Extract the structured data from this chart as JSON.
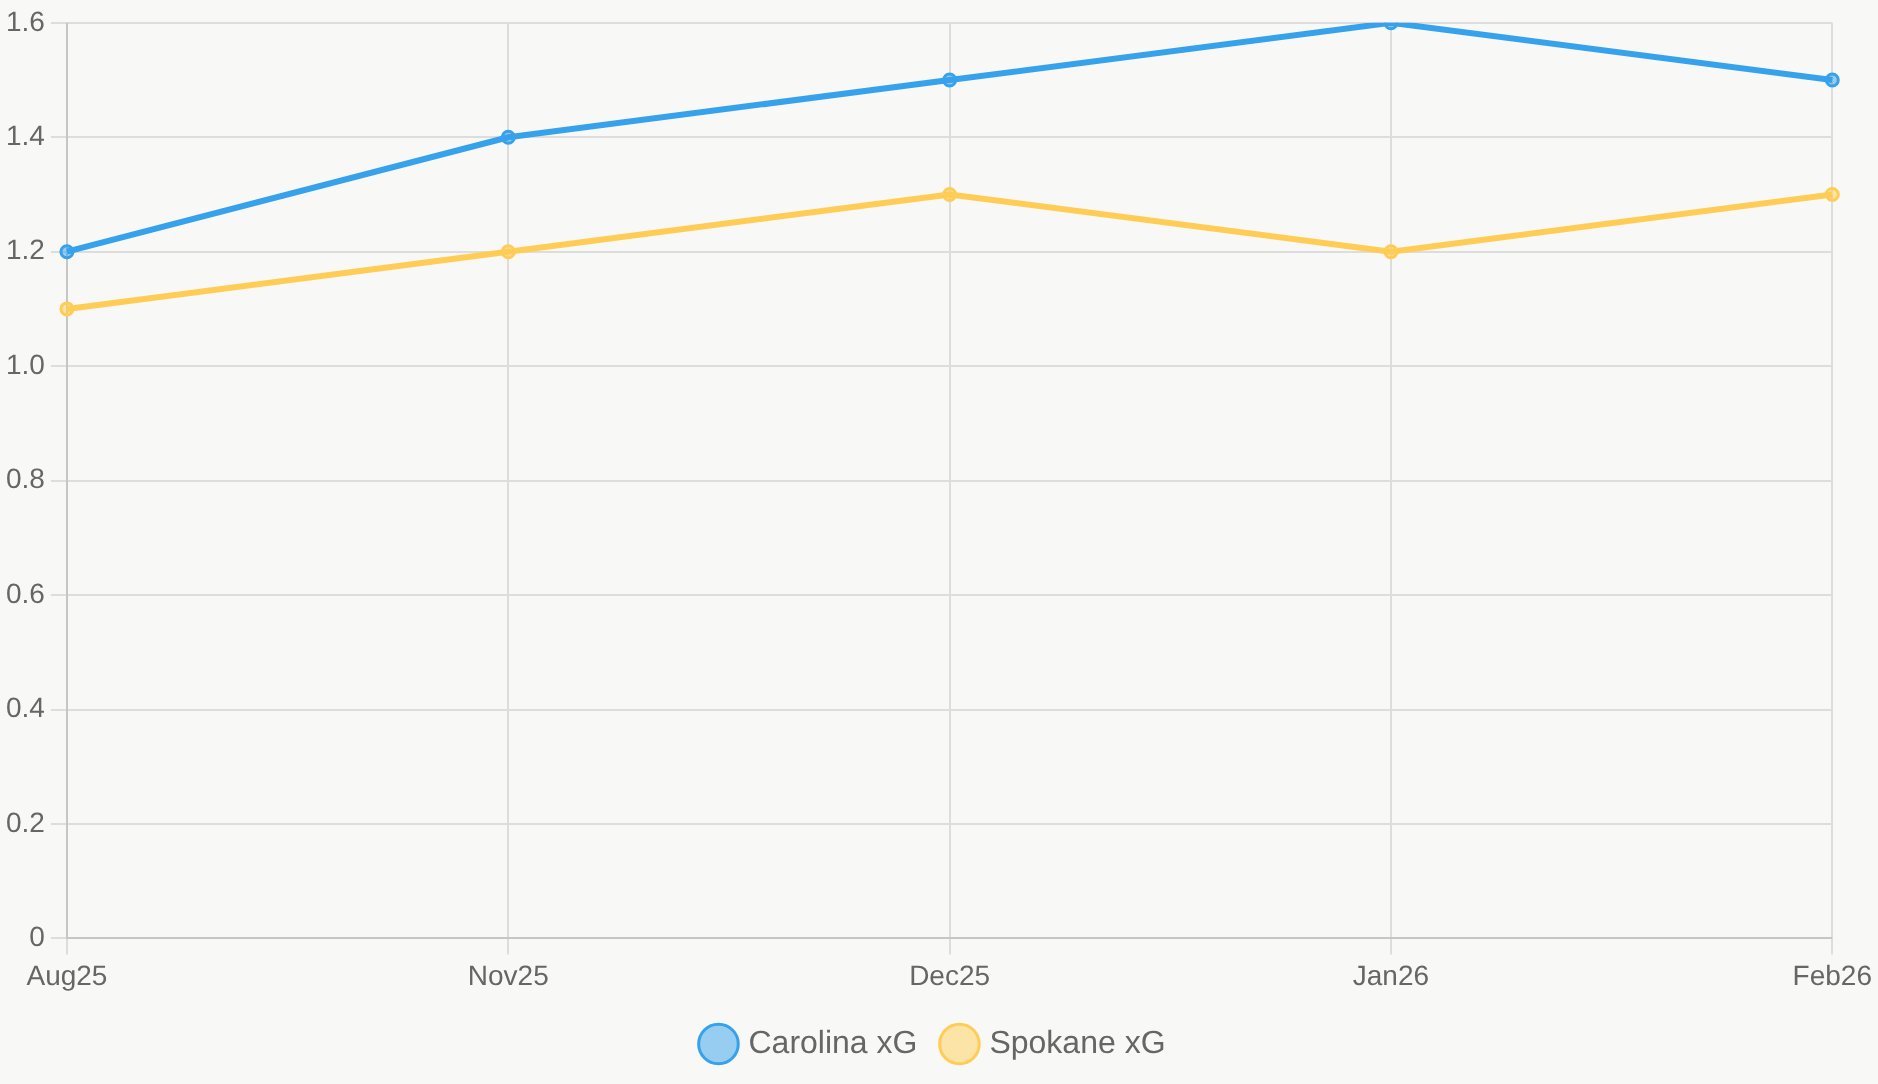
{
  "chart_data": {
    "type": "line",
    "categories": [
      "Aug25",
      "Nov25",
      "Dec25",
      "Jan26",
      "Feb26"
    ],
    "series": [
      {
        "name": "Carolina xG",
        "color": "#36a2eb",
        "values": [
          1.2,
          1.4,
          1.5,
          1.6,
          1.5
        ]
      },
      {
        "name": "Spokane xG",
        "color": "#ffcd56",
        "values": [
          1.1,
          1.2,
          1.3,
          1.2,
          1.3
        ]
      }
    ],
    "ylim": [
      0,
      1.6
    ],
    "yticks": [
      0,
      0.2,
      0.4,
      0.6,
      0.8,
      {
        "value": 1,
        "label": "1.0"
      },
      1.2,
      1.4,
      1.6
    ],
    "grid": true,
    "legend": "bottom",
    "marker": "circle",
    "line_style": "solid"
  }
}
